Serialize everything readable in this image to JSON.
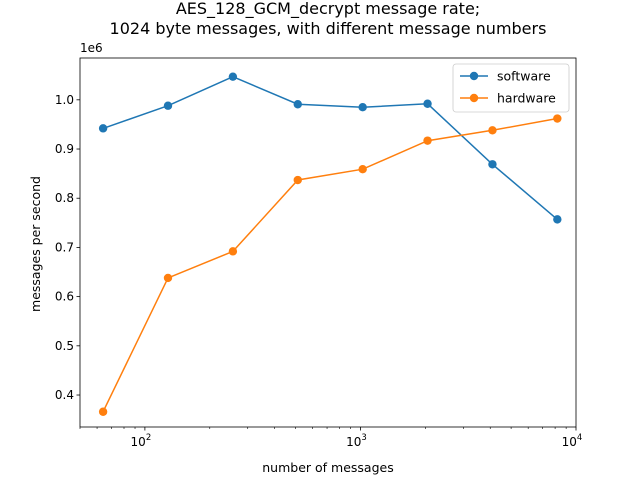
{
  "chart_data": {
    "type": "line",
    "title_lines": [
      "AES_128_GCM_decrypt message rate;",
      "1024 byte messages, with different message numbers"
    ],
    "xlabel": "number of messages",
    "ylabel": "messages per second",
    "x_scale": "log",
    "xlim": [
      50,
      10000
    ],
    "ylim": [
      0.335,
      1.085
    ],
    "y_offset_label": "1e6",
    "x_ticks": [
      {
        "value": 100,
        "base": "10",
        "exp": "2"
      },
      {
        "value": 1000,
        "base": "10",
        "exp": "3"
      },
      {
        "value": 10000,
        "base": "10",
        "exp": "4"
      }
    ],
    "y_ticks": [
      {
        "value": 0.4,
        "label": "0.4"
      },
      {
        "value": 0.5,
        "label": "0.5"
      },
      {
        "value": 0.6,
        "label": "0.6"
      },
      {
        "value": 0.7,
        "label": "0.7"
      },
      {
        "value": 0.8,
        "label": "0.8"
      },
      {
        "value": 0.9,
        "label": "0.9"
      },
      {
        "value": 1.0,
        "label": "1.0"
      }
    ],
    "grid": false,
    "legend_position": "top-right",
    "x": [
      64,
      128,
      256,
      512,
      1024,
      2048,
      4096,
      8192
    ],
    "series": [
      {
        "name": "software",
        "color": "#1f77b4",
        "marker": "circle",
        "values": [
          0.942,
          0.988,
          1.047,
          0.991,
          0.985,
          0.992,
          0.869,
          0.757
        ]
      },
      {
        "name": "hardware",
        "color": "#ff7f0e",
        "marker": "circle",
        "values": [
          0.366,
          0.638,
          0.692,
          0.837,
          0.859,
          0.917,
          0.938,
          0.962
        ]
      }
    ]
  }
}
